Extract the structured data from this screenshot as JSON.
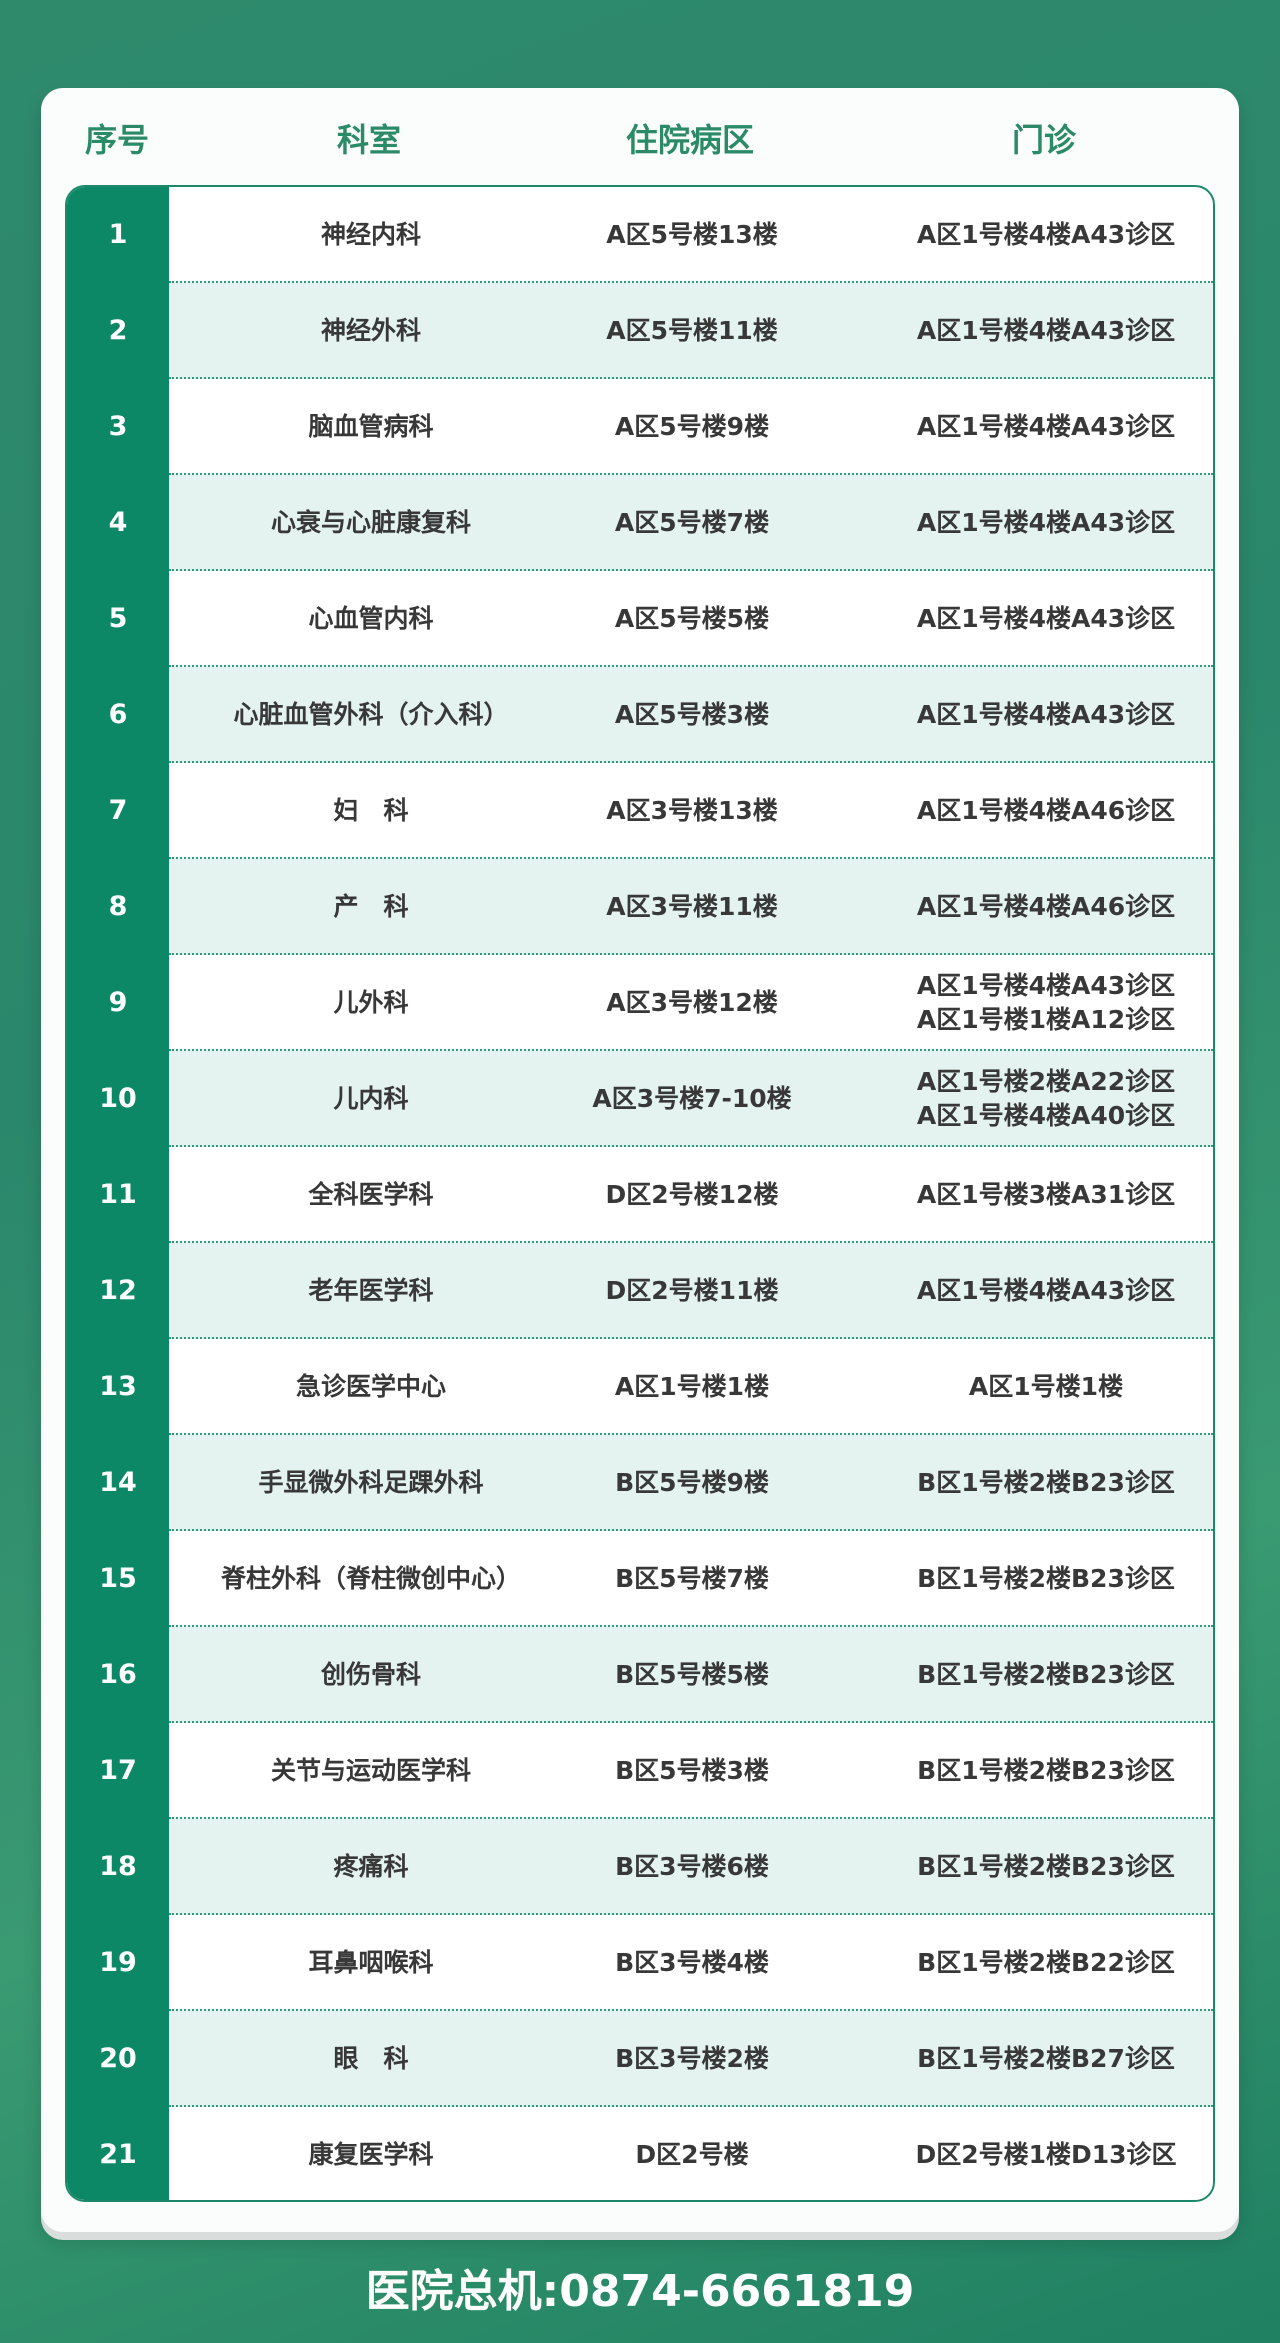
{
  "header": {
    "seq": "序号",
    "dept": "科室",
    "ward": "住院病区",
    "clinic": "门诊"
  },
  "rows": [
    {
      "seq": "1",
      "dept": "神经内科",
      "ward": "A区5号楼13楼",
      "clinic": [
        "A区1号楼4楼A43诊区"
      ]
    },
    {
      "seq": "2",
      "dept": "神经外科",
      "ward": "A区5号楼11楼",
      "clinic": [
        "A区1号楼4楼A43诊区"
      ]
    },
    {
      "seq": "3",
      "dept": "脑血管病科",
      "ward": "A区5号楼9楼",
      "clinic": [
        "A区1号楼4楼A43诊区"
      ]
    },
    {
      "seq": "4",
      "dept": "心衰与心脏康复科",
      "ward": "A区5号楼7楼",
      "clinic": [
        "A区1号楼4楼A43诊区"
      ]
    },
    {
      "seq": "5",
      "dept": "心血管内科",
      "ward": "A区5号楼5楼",
      "clinic": [
        "A区1号楼4楼A43诊区"
      ]
    },
    {
      "seq": "6",
      "dept": "心脏血管外科（介入科）",
      "ward": "A区5号楼3楼",
      "clinic": [
        "A区1号楼4楼A43诊区"
      ]
    },
    {
      "seq": "7",
      "dept": "妇　科",
      "ward": "A区3号楼13楼",
      "clinic": [
        "A区1号楼4楼A46诊区"
      ]
    },
    {
      "seq": "8",
      "dept": "产　科",
      "ward": "A区3号楼11楼",
      "clinic": [
        "A区1号楼4楼A46诊区"
      ]
    },
    {
      "seq": "9",
      "dept": "儿外科",
      "ward": "A区3号楼12楼",
      "clinic": [
        "A区1号楼4楼A43诊区",
        "A区1号楼1楼A12诊区"
      ]
    },
    {
      "seq": "10",
      "dept": "儿内科",
      "ward": "A区3号楼7-10楼",
      "clinic": [
        "A区1号楼2楼A22诊区",
        "A区1号楼4楼A40诊区"
      ]
    },
    {
      "seq": "11",
      "dept": "全科医学科",
      "ward": "D区2号楼12楼",
      "clinic": [
        "A区1号楼3楼A31诊区"
      ]
    },
    {
      "seq": "12",
      "dept": "老年医学科",
      "ward": "D区2号楼11楼",
      "clinic": [
        "A区1号楼4楼A43诊区"
      ]
    },
    {
      "seq": "13",
      "dept": "急诊医学中心",
      "ward": "A区1号楼1楼",
      "clinic": [
        "A区1号楼1楼"
      ]
    },
    {
      "seq": "14",
      "dept": "手显微外科足踝外科",
      "ward": "B区5号楼9楼",
      "clinic": [
        "B区1号楼2楼B23诊区"
      ]
    },
    {
      "seq": "15",
      "dept": "脊柱外科（脊柱微创中心）",
      "ward": "B区5号楼7楼",
      "clinic": [
        "B区1号楼2楼B23诊区"
      ]
    },
    {
      "seq": "16",
      "dept": "创伤骨科",
      "ward": "B区5号楼5楼",
      "clinic": [
        "B区1号楼2楼B23诊区"
      ]
    },
    {
      "seq": "17",
      "dept": "关节与运动医学科",
      "ward": "B区5号楼3楼",
      "clinic": [
        "B区1号楼2楼B23诊区"
      ]
    },
    {
      "seq": "18",
      "dept": "疼痛科",
      "ward": "B区3号楼6楼",
      "clinic": [
        "B区1号楼2楼B23诊区"
      ]
    },
    {
      "seq": "19",
      "dept": "耳鼻咽喉科",
      "ward": "B区3号楼4楼",
      "clinic": [
        "B区1号楼2楼B22诊区"
      ]
    },
    {
      "seq": "20",
      "dept": "眼　科",
      "ward": "B区3号楼2楼",
      "clinic": [
        "B区1号楼2楼B27诊区"
      ]
    },
    {
      "seq": "21",
      "dept": "康复医学科",
      "ward": "D区2号楼",
      "clinic": [
        "D区2号楼1楼D13诊区"
      ]
    }
  ],
  "footer": "医院总机:0874-6661819",
  "colors": {
    "background": "#2e8a6c",
    "accent": "#0d8866",
    "row_alt": "#e4f3f0",
    "header_text": "#2b8a68"
  }
}
